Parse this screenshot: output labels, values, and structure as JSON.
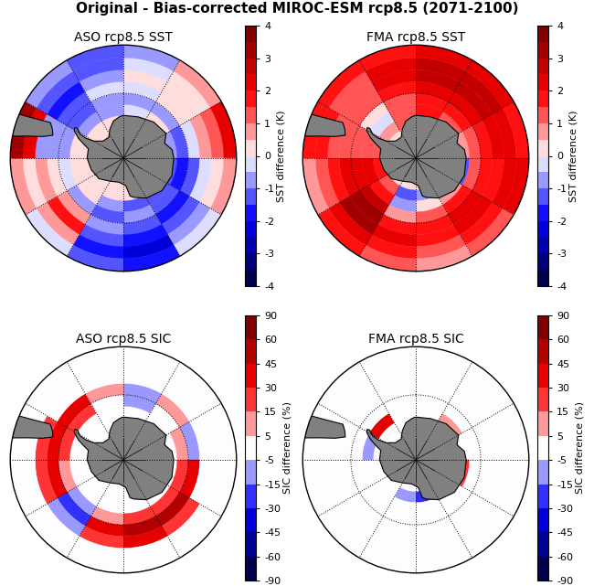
{
  "title": "Original - Bias-corrected MIROC-ESM rcp8.5 (2071-2100)",
  "chart_data": [
    {
      "type": "heatmap",
      "title": "ASO rcp8.5 SST",
      "lon_edges": [
        0,
        30,
        60,
        90,
        120,
        150,
        180,
        210,
        240,
        270,
        300,
        330,
        360
      ],
      "lat_edges": [
        -80,
        -75,
        -70,
        -65,
        -60,
        -55,
        -50,
        -45,
        -40
      ],
      "parallels": [
        -60
      ],
      "values": [
        [
          0,
          0,
          0,
          0,
          0,
          0,
          0,
          0,
          0,
          0,
          0,
          0
        ],
        [
          0,
          0,
          0,
          0,
          0,
          0,
          0,
          0,
          0,
          0,
          0,
          0
        ],
        [
          -0.5,
          0,
          -1,
          -1.5,
          -1.5,
          -1.5,
          -1,
          0,
          0,
          0,
          -1,
          -1
        ],
        [
          -1,
          -1,
          -1.5,
          -2,
          -1.5,
          -1,
          -1.5,
          -1,
          -0.5,
          -1,
          -1.5,
          -1
        ],
        [
          -0.5,
          0,
          -0.5,
          -1.5,
          -2,
          -1.5,
          -1,
          0.5,
          0,
          -1,
          -1.5,
          -0.5
        ],
        [
          0,
          0,
          0.5,
          -0.5,
          -1.5,
          -2,
          -1.5,
          1.5,
          0.5,
          -1,
          -2,
          -1
        ],
        [
          -0.5,
          0,
          1,
          0,
          -1,
          -2.5,
          -2,
          0.5,
          0,
          2,
          -1.5,
          -1.5
        ],
        [
          -1,
          0.5,
          2,
          0.5,
          -0.5,
          -2,
          -1.5,
          -0.5,
          0.5,
          3,
          -1,
          -1.5
        ]
      ],
      "colorbar": {
        "label": "SST difference (K)",
        "range": [
          -4,
          4
        ],
        "levels": [
          -4,
          -3.5,
          -3,
          -2.5,
          -2,
          -1.5,
          -1,
          -0.5,
          0,
          0.5,
          1,
          1.5,
          2,
          2.5,
          3,
          3.5,
          4
        ],
        "ticks": [
          -4,
          -3,
          -2,
          -1,
          0,
          1,
          2,
          3,
          4
        ]
      }
    },
    {
      "type": "heatmap",
      "title": "FMA rcp8.5 SST",
      "lon_edges": [
        0,
        30,
        60,
        90,
        120,
        150,
        180,
        210,
        240,
        270,
        300,
        330,
        360
      ],
      "lat_edges": [
        -80,
        -75,
        -70,
        -65,
        -60,
        -55,
        -50,
        -45,
        -40
      ],
      "parallels": [
        -60
      ],
      "values": [
        [
          0,
          0,
          0,
          0,
          0,
          0,
          0,
          0,
          0,
          0,
          0,
          0
        ],
        [
          1,
          1,
          1,
          -1,
          0.5,
          -1,
          -1.5,
          1,
          1.5,
          1,
          0.5,
          1
        ],
        [
          1.5,
          1,
          0.5,
          -1.5,
          0.5,
          0,
          -1,
          1.5,
          2,
          1,
          -0.5,
          1
        ],
        [
          1.5,
          1.5,
          1,
          1,
          1.5,
          1,
          0.5,
          2.5,
          2,
          1,
          0,
          1
        ],
        [
          2,
          2,
          1.5,
          1.5,
          2,
          1.5,
          1.5,
          3,
          2,
          1,
          1,
          1.5
        ],
        [
          2.5,
          2.5,
          2,
          1.5,
          2,
          1.5,
          2,
          3,
          1.5,
          1,
          1,
          2
        ],
        [
          2.5,
          2.5,
          2,
          2,
          1.5,
          1,
          1.5,
          2,
          1,
          1.5,
          1,
          2
        ],
        [
          2,
          2,
          1.5,
          2,
          1,
          0.5,
          1,
          1.5,
          0.5,
          1.5,
          1.5,
          1.5
        ]
      ],
      "colorbar": {
        "label": "SST difference (K)",
        "range": [
          -4,
          4
        ],
        "levels": [
          -4,
          -3.5,
          -3,
          -2.5,
          -2,
          -1.5,
          -1,
          -0.5,
          0,
          0.5,
          1,
          1.5,
          2,
          2.5,
          3,
          3.5,
          4
        ],
        "ticks": [
          -4,
          -3,
          -2,
          -1,
          0,
          1,
          2,
          3,
          4
        ]
      }
    },
    {
      "type": "heatmap",
      "title": "ASO rcp8.5 SIC",
      "lon_edges": [
        0,
        30,
        60,
        90,
        120,
        150,
        180,
        210,
        240,
        270,
        300,
        330,
        360
      ],
      "lat_edges": [
        -80,
        -75,
        -70,
        -65,
        -60,
        -55,
        -50,
        -45,
        -40
      ],
      "parallels": [
        -60
      ],
      "values": [
        [
          0,
          0,
          0,
          0,
          0,
          0,
          0,
          0,
          0,
          0,
          0,
          0
        ],
        [
          0,
          0,
          0,
          0,
          0,
          0,
          0,
          0,
          0,
          0,
          0,
          0
        ],
        [
          0,
          0,
          0,
          0,
          0,
          0,
          0,
          0,
          0,
          0,
          0,
          0
        ],
        [
          -15,
          0,
          10,
          20,
          20,
          15,
          10,
          -10,
          10,
          20,
          15,
          0
        ],
        [
          -10,
          10,
          -10,
          30,
          45,
          45,
          30,
          -20,
          30,
          40,
          30,
          10
        ],
        [
          0,
          0,
          0,
          0,
          15,
          30,
          20,
          -10,
          15,
          20,
          0,
          0
        ],
        [
          0,
          0,
          0,
          0,
          0,
          0,
          0,
          0,
          0,
          0,
          0,
          0
        ],
        [
          0,
          0,
          0,
          0,
          0,
          0,
          0,
          0,
          0,
          0,
          0,
          0
        ]
      ],
      "colorbar": {
        "label": "SIC difference (%)",
        "range": [
          -90,
          90
        ],
        "levels": [
          -90,
          -60,
          -45,
          -30,
          -15,
          -5,
          5,
          15,
          30,
          45,
          60,
          90
        ],
        "ticks": [
          -90,
          -60,
          -45,
          -30,
          -15,
          -5,
          5,
          15,
          30,
          45,
          60,
          90
        ]
      }
    },
    {
      "type": "heatmap",
      "title": "FMA rcp8.5 SIC",
      "lon_edges": [
        0,
        30,
        60,
        90,
        120,
        150,
        180,
        210,
        240,
        270,
        300,
        330,
        360
      ],
      "lat_edges": [
        -80,
        -75,
        -70,
        -65,
        -60,
        -55,
        -50,
        -45,
        -40
      ],
      "parallels": [
        -60
      ],
      "values": [
        [
          0,
          0,
          0,
          0,
          0,
          0,
          0,
          0,
          0,
          0,
          0,
          0
        ],
        [
          0,
          0,
          0,
          0,
          10,
          -30,
          -15,
          0,
          0,
          0,
          0,
          0
        ],
        [
          0,
          10,
          0,
          20,
          0,
          0,
          0,
          0,
          0,
          -10,
          30,
          0
        ],
        [
          0,
          0,
          0,
          0,
          0,
          0,
          0,
          0,
          0,
          0,
          0,
          0
        ],
        [
          0,
          0,
          0,
          0,
          0,
          0,
          0,
          0,
          0,
          0,
          0,
          0
        ],
        [
          0,
          0,
          0,
          0,
          0,
          0,
          0,
          0,
          0,
          0,
          0,
          0
        ],
        [
          0,
          0,
          0,
          0,
          0,
          0,
          0,
          0,
          0,
          0,
          0,
          0
        ],
        [
          0,
          0,
          0,
          0,
          0,
          0,
          0,
          0,
          0,
          0,
          0,
          0
        ]
      ],
      "colorbar": {
        "label": "SIC difference (%)",
        "range": [
          -90,
          90
        ],
        "levels": [
          -90,
          -60,
          -45,
          -30,
          -15,
          -5,
          5,
          15,
          30,
          45,
          60,
          90
        ],
        "ticks": [
          -90,
          -60,
          -45,
          -30,
          -15,
          -5,
          5,
          15,
          30,
          45,
          60,
          90
        ]
      }
    }
  ]
}
